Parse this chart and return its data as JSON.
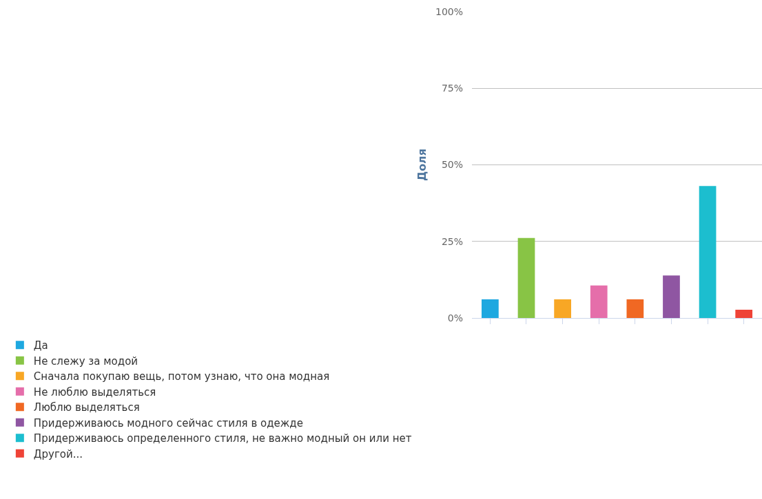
{
  "chart_data": {
    "type": "bar",
    "ylabel": "Доля",
    "categories": [
      null,
      null,
      null,
      null,
      null,
      null,
      null,
      null
    ],
    "series": [
      {
        "name": "Да",
        "color": "#1ea8e0",
        "values": [
          6.1,
          null,
          null,
          null,
          null,
          null,
          null,
          null
        ]
      },
      {
        "name": "Не слежу за модой",
        "color": "#88c445",
        "values": [
          null,
          26.1,
          null,
          null,
          null,
          null,
          null,
          null
        ]
      },
      {
        "name": "Сначала покупаю вещь, потом узнаю, что она модная",
        "color": "#f8a725",
        "values": [
          null,
          null,
          6.1,
          null,
          null,
          null,
          null,
          null
        ]
      },
      {
        "name": "Не люблю выделяться",
        "color": "#e56eaa",
        "values": [
          null,
          null,
          null,
          10.6,
          null,
          null,
          null,
          null
        ]
      },
      {
        "name": "Люблю выделяться",
        "color": "#f06823",
        "values": [
          null,
          null,
          null,
          null,
          6.1,
          null,
          null,
          null
        ]
      },
      {
        "name": "Придерживаюсь модного сейчас стиля в одежде",
        "color": "#8f56a2",
        "values": [
          null,
          null,
          null,
          null,
          null,
          13.9,
          null,
          null
        ]
      },
      {
        "name": "Придерживаюсь определенного стиля, не важно модный он или нет",
        "color": "#1cbecf",
        "values": [
          null,
          null,
          null,
          null,
          null,
          null,
          43.1,
          null
        ]
      },
      {
        "name": "Другой...",
        "color": "#ef4337",
        "values": [
          null,
          null,
          null,
          null,
          null,
          null,
          null,
          2.7
        ]
      }
    ],
    "ylim": [
      0,
      100
    ],
    "yticks": [
      {
        "value": 0,
        "label": "0%"
      },
      {
        "value": 25,
        "label": "25%"
      },
      {
        "value": 50,
        "label": "50%"
      },
      {
        "value": 75,
        "label": "75%"
      },
      {
        "value": 100,
        "label": "100%"
      }
    ],
    "grid": "y",
    "legend": "bottom"
  }
}
